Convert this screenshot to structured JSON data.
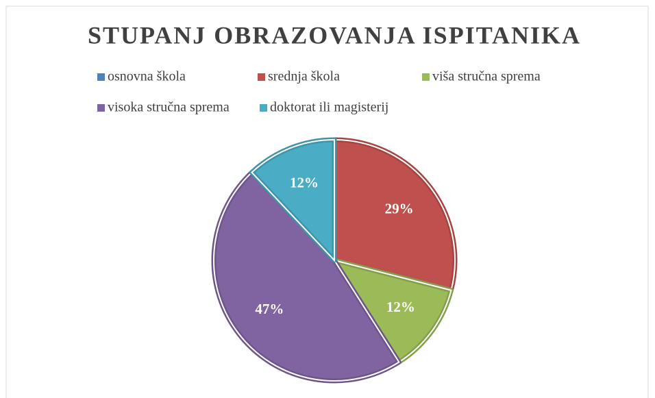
{
  "chart_data": {
    "type": "pie",
    "title": "STUPANJ OBRAZOVANJA ISPITANIKA",
    "categories": [
      "osnovna škola",
      "srednja škola",
      "viša stručna sprema",
      "visoka stručna sprema",
      "doktorat ili magisterij"
    ],
    "values": [
      0,
      29,
      12,
      47,
      12
    ],
    "value_labels": [
      null,
      "29%",
      "12%",
      "47%",
      "12%"
    ],
    "colors": [
      "#4f81bd",
      "#c0504d",
      "#9bbb59",
      "#8064a2",
      "#4bacc6"
    ],
    "legend": "top"
  }
}
